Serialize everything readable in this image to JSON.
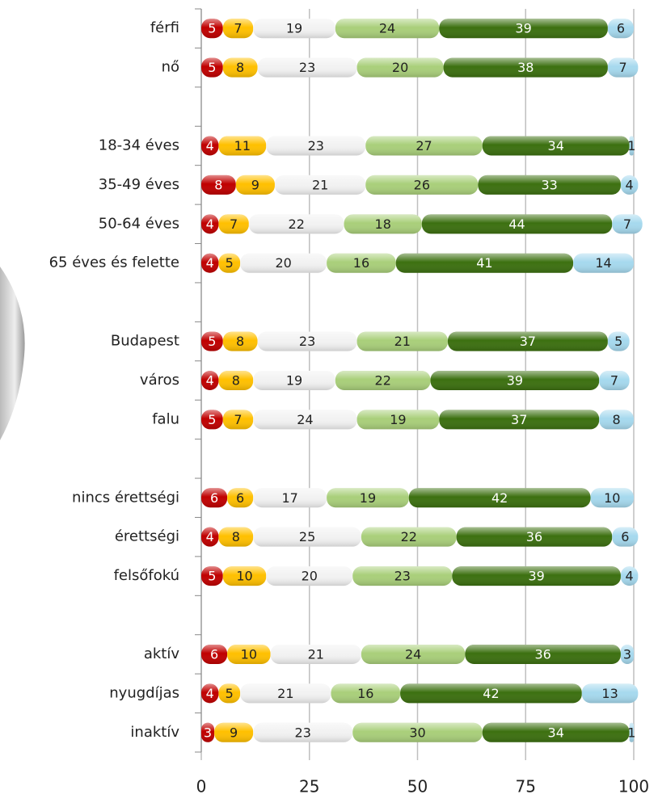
{
  "chart_data": {
    "type": "stacked-bar-horizontal",
    "categories": [
      "férfi",
      "nő",
      null,
      "18-34 éves",
      "35-49 éves",
      "50-64 éves",
      "65 éves és felette",
      null,
      "Budapest",
      "város",
      "falu",
      null,
      "nincs érettségi",
      "érettségi",
      "felsőfokú",
      null,
      "aktív",
      "nyugdíjas",
      "inaktív"
    ],
    "series": [
      {
        "color": "#c00000",
        "values": [
          5,
          5,
          null,
          4,
          8,
          4,
          4,
          null,
          5,
          4,
          5,
          null,
          6,
          4,
          5,
          null,
          6,
          4,
          3
        ]
      },
      {
        "color": "#ffc000",
        "values": [
          7,
          8,
          null,
          11,
          9,
          7,
          5,
          null,
          8,
          8,
          7,
          null,
          6,
          8,
          10,
          null,
          10,
          5,
          9
        ]
      },
      {
        "color": "#f2f2f2",
        "values": [
          19,
          23,
          null,
          23,
          21,
          22,
          20,
          null,
          23,
          19,
          24,
          null,
          17,
          25,
          20,
          null,
          21,
          21,
          23
        ]
      },
      {
        "color": "#a9cf7a",
        "values": [
          24,
          20,
          null,
          27,
          26,
          18,
          16,
          null,
          21,
          22,
          19,
          null,
          19,
          22,
          23,
          null,
          24,
          16,
          30
        ]
      },
      {
        "color": "#3c7010",
        "values": [
          39,
          38,
          null,
          34,
          33,
          44,
          41,
          null,
          37,
          39,
          37,
          null,
          42,
          36,
          39,
          null,
          36,
          42,
          34
        ]
      },
      {
        "color": "#a6d9ee",
        "values": [
          6,
          7,
          null,
          1,
          4,
          7,
          14,
          null,
          5,
          7,
          8,
          null,
          10,
          6,
          4,
          null,
          3,
          13,
          1
        ]
      }
    ],
    "xlim": [
      0,
      100
    ],
    "xticks": [
      0,
      25,
      50,
      75,
      100
    ],
    "grid": true
  }
}
